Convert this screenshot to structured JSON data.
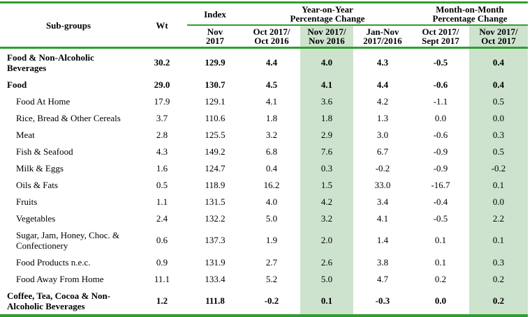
{
  "colors": {
    "line_green": "#2f9e2f",
    "highlight_green": "#cee3ce",
    "text": "#000000",
    "background": "#ffffff"
  },
  "header": {
    "subgroups": "Sub-groups",
    "wt": "Wt",
    "index": "Index",
    "yoy": "Year-on-Year\nPercentage Change",
    "mom": "Month-on-Month\nPercentage Change",
    "cols": [
      "Nov\n2017",
      "Oct 2017/\nOct 2016",
      "Nov 2017/\nNov 2016",
      "Jan-Nov\n2017/2016",
      "Oct 2017/\nSept 2017",
      "Nov 2017/\nOct 2017"
    ],
    "highlighted_cols": [
      "Nov 2017/ Nov 2016",
      "Nov 2017/ Oct 2017"
    ]
  },
  "rows": [
    {
      "label": "Food & Non-Alcoholic Beverages",
      "style": "bold",
      "values": [
        "30.2",
        "129.9",
        "4.4",
        "4.0",
        "4.3",
        "-0.5",
        "0.4"
      ]
    },
    {
      "label": "Food",
      "style": "bold",
      "values": [
        "29.0",
        "130.7",
        "4.5",
        "4.1",
        "4.4",
        "-0.6",
        "0.4"
      ]
    },
    {
      "label": "Food At Home",
      "style": "sub",
      "values": [
        "17.9",
        "129.1",
        "4.1",
        "3.6",
        "4.2",
        "-1.1",
        "0.5"
      ]
    },
    {
      "label": "Rice, Bread & Other Cereals",
      "style": "sub",
      "values": [
        "3.7",
        "110.6",
        "1.8",
        "1.8",
        "1.3",
        "0.0",
        "0.0"
      ]
    },
    {
      "label": "Meat",
      "style": "sub",
      "values": [
        "2.8",
        "125.5",
        "3.2",
        "2.9",
        "3.0",
        "-0.6",
        "0.3"
      ]
    },
    {
      "label": "Fish & Seafood",
      "style": "sub",
      "values": [
        "4.3",
        "149.2",
        "6.8",
        "7.6",
        "6.7",
        "-0.9",
        "0.5"
      ]
    },
    {
      "label": "Milk & Eggs",
      "style": "sub",
      "values": [
        "1.6",
        "124.7",
        "0.4",
        "0.3",
        "-0.2",
        "-0.9",
        "-0.2"
      ]
    },
    {
      "label": "Oils & Fats",
      "style": "sub",
      "values": [
        "0.5",
        "118.9",
        "16.2",
        "1.5",
        "33.0",
        "-16.7",
        "0.1"
      ]
    },
    {
      "label": "Fruits",
      "style": "sub",
      "values": [
        "1.1",
        "131.5",
        "4.0",
        "4.2",
        "3.4",
        "-0.4",
        "0.0"
      ]
    },
    {
      "label": "Vegetables",
      "style": "sub",
      "values": [
        "2.4",
        "132.2",
        "5.0",
        "3.2",
        "4.1",
        "-0.5",
        "2.2"
      ]
    },
    {
      "label": "Sugar, Jam, Honey, Choc. & Confectionery",
      "style": "sub",
      "values": [
        "0.6",
        "137.3",
        "1.9",
        "2.0",
        "1.4",
        "0.1",
        "0.1"
      ]
    },
    {
      "label": "Food Products n.e.c.",
      "style": "sub",
      "values": [
        "0.9",
        "131.9",
        "2.7",
        "2.6",
        "3.8",
        "0.1",
        "0.3"
      ]
    },
    {
      "label": "Food Away From Home",
      "style": "sub",
      "values": [
        "11.1",
        "133.4",
        "5.2",
        "5.0",
        "4.7",
        "0.2",
        "0.2"
      ]
    },
    {
      "label": "Coffee, Tea, Cocoa & Non-Alcoholic Beverages",
      "style": "bold",
      "values": [
        "1.2",
        "111.8",
        "-0.2",
        "0.1",
        "-0.3",
        "0.0",
        "0.2"
      ]
    }
  ]
}
